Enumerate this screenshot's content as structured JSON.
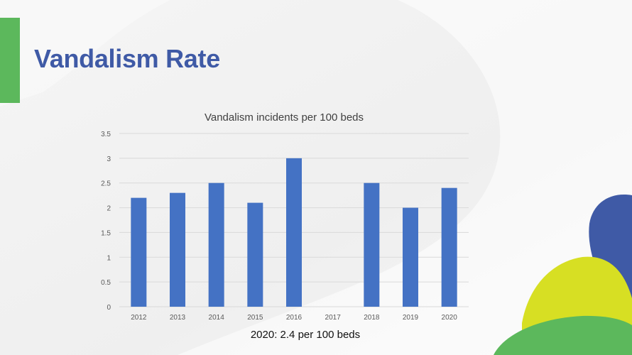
{
  "slide": {
    "title": "Vandalism Rate",
    "caption": "2020: 2.4 per 100 beds"
  },
  "colors": {
    "title": "#3f5aa6",
    "accent_bar": "#5cb85c",
    "bar": "#4472c4",
    "gridline": "#d9d9d9",
    "tick_text": "#595959",
    "deco_blue": "#3f5aa6",
    "deco_yellow": "#d7df23",
    "deco_green": "#5cb85c"
  },
  "chart_data": {
    "type": "bar",
    "title": "Vandalism incidents per 100 beds",
    "categories": [
      "2012",
      "2013",
      "2014",
      "2015",
      "2016",
      "2017",
      "2018",
      "2019",
      "2020"
    ],
    "values": [
      2.2,
      2.3,
      2.5,
      2.1,
      3.0,
      null,
      2.5,
      2.0,
      2.4
    ],
    "ylim": [
      0,
      3.5
    ],
    "yticks": [
      "0",
      "0.5",
      "1",
      "1.5",
      "2",
      "2.5",
      "3",
      "3.5"
    ],
    "grid": true,
    "legend": "none"
  }
}
